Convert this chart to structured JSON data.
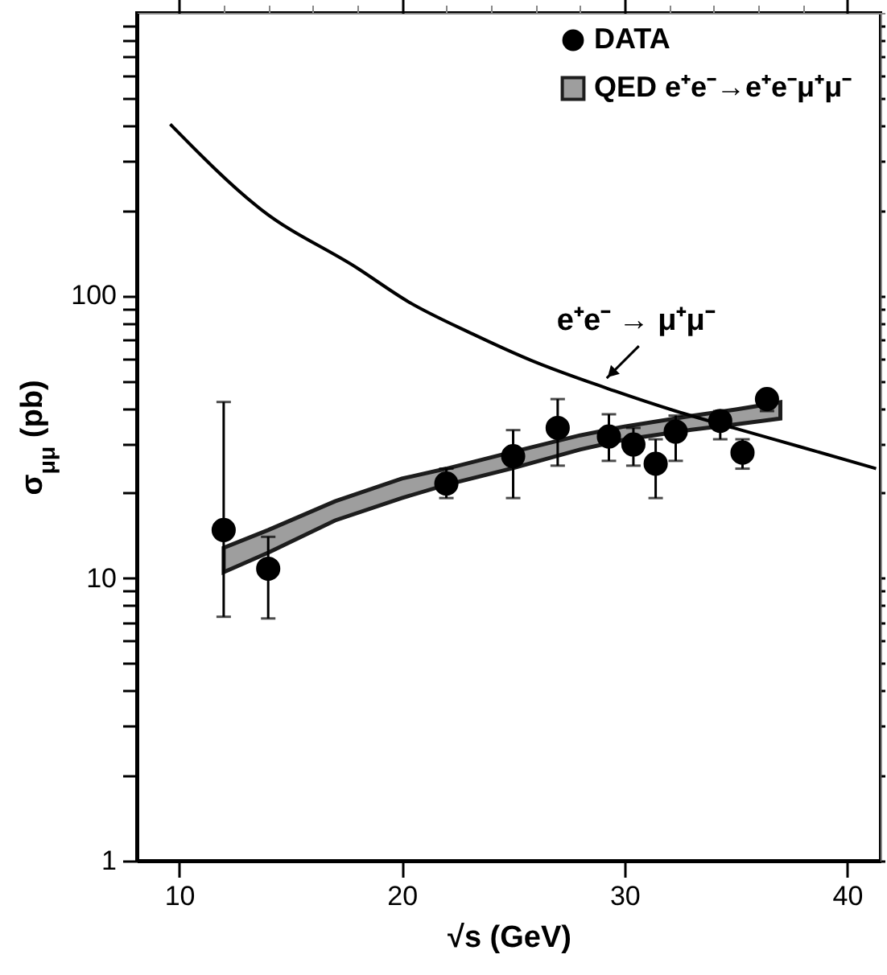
{
  "chart_data": {
    "type": "scatter",
    "xlabel": "√s (GeV)",
    "ylabel": "σ$_{μμ}$ (pb)",
    "log": "y",
    "legend": "top right",
    "xlim": [
      8.1,
      41.5
    ],
    "xticks": [
      10,
      20,
      30,
      40
    ],
    "ylim": [
      1,
      1000
    ],
    "yticks": [
      1,
      {
        "value": 2,
        "label": null
      },
      {
        "value": 3,
        "label": null
      },
      {
        "value": 4,
        "label": null
      },
      {
        "value": 5,
        "label": null
      },
      {
        "value": 6,
        "label": null
      },
      {
        "value": 7,
        "label": null
      },
      {
        "value": 8,
        "label": null
      },
      {
        "value": 9,
        "label": null
      },
      10,
      {
        "value": 20,
        "label": null
      },
      {
        "value": 30,
        "label": null
      },
      {
        "value": 40,
        "label": null
      },
      {
        "value": 50,
        "label": null
      },
      {
        "value": 60,
        "label": null
      },
      {
        "value": 70,
        "label": null
      },
      {
        "value": 80,
        "label": null
      },
      {
        "value": 90,
        "label": null
      },
      100,
      {
        "value": 200,
        "label": null
      },
      {
        "value": 300,
        "label": null
      },
      {
        "value": 400,
        "label": null
      },
      {
        "value": 500,
        "label": null
      },
      {
        "value": 600,
        "label": null
      },
      {
        "value": 700,
        "label": null
      },
      {
        "value": 800,
        "label": null
      },
      {
        "value": 900,
        "label": null
      }
    ],
    "series": [
      {
        "name": "DATA",
        "marker": "circle",
        "color": "#000000",
        "x": [
          12,
          14,
          22,
          25,
          27,
          29.3,
          30.4,
          31.4,
          32.3,
          34.3,
          35.3,
          36.4
        ],
        "values": [
          14.8,
          10.8,
          21.6,
          27,
          34,
          31.7,
          29.7,
          25.4,
          33,
          36,
          27.8,
          43
        ],
        "errors": [
          [
            7.3,
            42
          ],
          [
            7.2,
            14
          ],
          [
            19.2,
            24.4
          ],
          [
            19.2,
            33.4
          ],
          [
            25,
            43
          ],
          [
            26,
            38
          ],
          [
            25,
            34
          ],
          [
            19.2,
            31
          ],
          [
            26,
            37.6
          ],
          [
            31,
            39
          ],
          [
            24.4,
            31
          ],
          [
            39,
            45.4
          ]
        ]
      },
      {
        "name": "QED e⁺e⁻→e⁺e⁻μ⁺μ⁻",
        "type": "line",
        "color": "#999999",
        "x": [
          12,
          14,
          17,
          20,
          22,
          25,
          28,
          30,
          33,
          35,
          37
        ],
        "values": [
          null,
          null,
          null,
          null,
          null,
          null,
          null,
          null,
          null,
          null,
          null
        ],
        "lower": [
          10.5,
          12.3,
          16,
          19.2,
          21.4,
          24.5,
          28.5,
          30.9,
          33.5,
          35,
          36.7
        ],
        "upper": [
          12.8,
          14.8,
          18.7,
          22.5,
          24.4,
          28,
          32,
          34.4,
          37.5,
          39.5,
          41.9
        ]
      },
      {
        "type": "line",
        "color": "#000000",
        "x": [
          9.6,
          13.7,
          18,
          20.3,
          23.2,
          25.8,
          29.2,
          32.3,
          34.9,
          38,
          41.3
        ],
        "values": [
          404,
          201,
          125,
          95,
          73,
          59,
          47,
          39,
          34,
          29,
          24.4
        ]
      }
    ],
    "annotations": [
      {
        "text": "e⁺e⁻ → μ⁺μ⁻",
        "x": 29.2,
        "y": 51
      }
    ]
  }
}
